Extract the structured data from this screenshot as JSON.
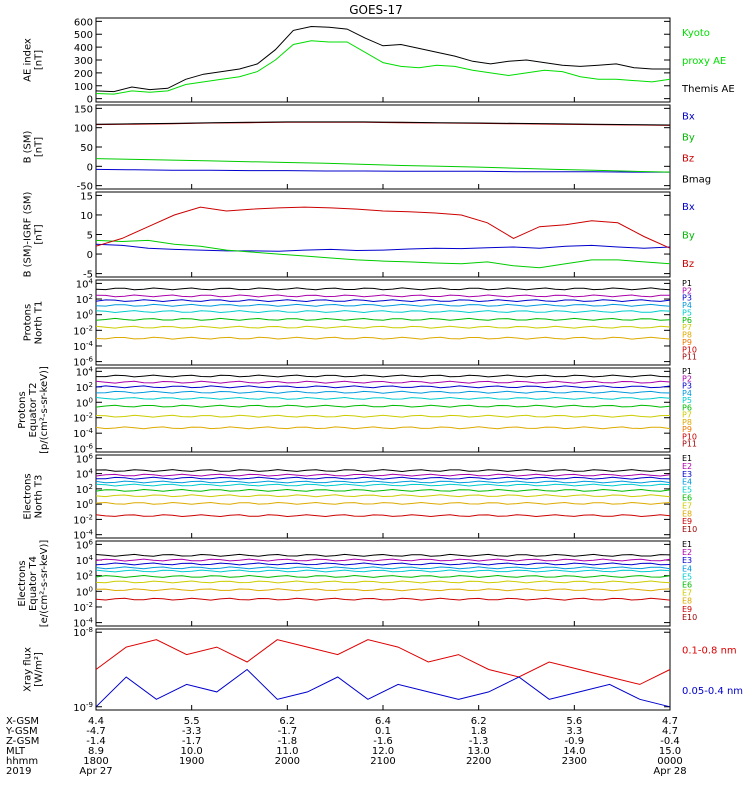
{
  "title": "GOES-17",
  "chart_data": [
    {
      "type": "line",
      "ylabel": "AE index\n[nT]",
      "ylim": [
        0,
        600
      ],
      "yticks": [
        "0",
        "100",
        "200",
        "300",
        "400",
        "500",
        "600"
      ],
      "series": [
        {
          "name": "Themis AE",
          "color": "#000000",
          "y": [
            60,
            55,
            90,
            70,
            80,
            150,
            190,
            210,
            230,
            270,
            380,
            530,
            560,
            555,
            540,
            470,
            410,
            420,
            390,
            360,
            330,
            290,
            270,
            290,
            300,
            280,
            260,
            250,
            260,
            270,
            240,
            230,
            230
          ]
        },
        {
          "name": "Kyoto proxy AE",
          "color": "#00dd00",
          "y": [
            40,
            35,
            60,
            50,
            60,
            110,
            130,
            150,
            170,
            210,
            300,
            420,
            450,
            440,
            440,
            360,
            280,
            250,
            240,
            260,
            250,
            220,
            200,
            180,
            200,
            220,
            210,
            170,
            150,
            150,
            140,
            130,
            150
          ]
        }
      ],
      "legend": [
        {
          "text": "Kyoto",
          "color": "#00dd00"
        },
        {
          "text": "proxy AE",
          "color": "#00dd00"
        },
        {
          "text": "Themis AE",
          "color": "#000000"
        }
      ]
    },
    {
      "type": "line",
      "ylabel": "B (SM)\n[nT]",
      "ylim": [
        -50,
        150
      ],
      "yticks": [
        "-50",
        "0",
        "50",
        "100",
        "150"
      ],
      "series": [
        {
          "name": "Bx",
          "color": "#0000cc",
          "y": [
            -8,
            -9,
            -10,
            -10,
            -11,
            -11,
            -12,
            -12,
            -13,
            -13,
            -13,
            -14,
            -14,
            -14,
            -15,
            -15
          ]
        },
        {
          "name": "By",
          "color": "#00cc00",
          "y": [
            20,
            18,
            16,
            14,
            12,
            10,
            8,
            5,
            2,
            0,
            -2,
            -5,
            -8,
            -10,
            -13,
            -15
          ]
        },
        {
          "name": "Bz",
          "color": "#cc0000",
          "y": [
            108,
            109,
            110,
            112,
            113,
            114,
            114,
            114,
            113,
            112,
            111,
            110,
            109,
            108,
            107,
            106
          ]
        },
        {
          "name": "Bmag",
          "color": "#000000",
          "y": [
            109,
            110,
            111,
            113,
            114,
            115,
            115,
            115,
            114,
            113,
            112,
            111,
            110,
            109,
            108,
            107
          ]
        }
      ],
      "legend": [
        {
          "text": "Bx",
          "color": "#0000cc"
        },
        {
          "text": "By",
          "color": "#00bb00"
        },
        {
          "text": "Bz",
          "color": "#cc0000"
        },
        {
          "text": "Bmag",
          "color": "#000000"
        }
      ]
    },
    {
      "type": "line",
      "ylabel": "B (SM)-IGRF (SM)\n[nT]",
      "ylim": [
        -5,
        15
      ],
      "yticks": [
        "-5",
        "0",
        "5",
        "10",
        "15"
      ],
      "series": [
        {
          "name": "Bx",
          "color": "#0000cc",
          "y": [
            2.5,
            2.2,
            1.5,
            1.2,
            1.0,
            0.8,
            0.8,
            0.7,
            1.0,
            1.2,
            0.9,
            1.0,
            1.3,
            1.5,
            1.4,
            1.6,
            1.8,
            1.5,
            2.0,
            2.2,
            1.8,
            1.5,
            1.8
          ]
        },
        {
          "name": "By",
          "color": "#00cc00",
          "y": [
            3.5,
            3.2,
            3.5,
            2.5,
            2.0,
            1.0,
            0.5,
            0.0,
            -0.5,
            -1.0,
            -1.5,
            -1.8,
            -2.0,
            -2.3,
            -2.5,
            -2.0,
            -3.0,
            -3.5,
            -2.5,
            -1.5,
            -1.5,
            -2.0,
            -2.5
          ]
        },
        {
          "name": "Bz",
          "color": "#cc0000",
          "y": [
            2.0,
            4.0,
            7.0,
            10.0,
            12.0,
            11.0,
            11.5,
            11.8,
            12.0,
            11.8,
            11.5,
            11.0,
            10.8,
            10.5,
            10.0,
            8.0,
            4.0,
            7.0,
            7.5,
            8.5,
            8.0,
            4.5,
            1.5
          ]
        }
      ],
      "legend": [
        {
          "text": "Bx",
          "color": "#0000cc"
        },
        {
          "text": "By",
          "color": "#00bb00"
        },
        {
          "text": "Bz",
          "color": "#cc0000"
        }
      ]
    },
    {
      "type": "line",
      "ylabel": "Protons\nNorth T1",
      "scale": "log",
      "yticks": [
        "10^4",
        "10^2",
        "10^0",
        "10^-2",
        "10^-4",
        "10^-6"
      ],
      "series": [
        {
          "name": "P1",
          "color": "#000000",
          "y": [
            3.3
          ]
        },
        {
          "name": "P2",
          "color": "#aa00aa",
          "y": [
            2.4
          ]
        },
        {
          "name": "P3",
          "color": "#0000cc",
          "y": [
            1.8
          ]
        },
        {
          "name": "P4",
          "color": "#0099dd",
          "y": [
            1.2
          ]
        },
        {
          "name": "P5",
          "color": "#00cccc",
          "y": [
            0.4
          ]
        },
        {
          "name": "P6",
          "color": "#00bb00",
          "y": [
            -0.6
          ]
        },
        {
          "name": "P7",
          "color": "#cccc00",
          "y": [
            -1.6
          ]
        },
        {
          "name": "P8",
          "color": "#ddaa00",
          "y": [
            -3.0
          ]
        }
      ],
      "legend": [
        {
          "text": "P1",
          "color": "#000000"
        },
        {
          "text": "P2",
          "color": "#aa00aa"
        },
        {
          "text": "P3",
          "color": "#0000cc"
        },
        {
          "text": "P4",
          "color": "#0099dd"
        },
        {
          "text": "P5",
          "color": "#00cccc"
        },
        {
          "text": "P6",
          "color": "#00bb00"
        },
        {
          "text": "P7",
          "color": "#cccc00"
        },
        {
          "text": "P8",
          "color": "#ddaa00"
        },
        {
          "text": "P9",
          "color": "#ee7700"
        },
        {
          "text": "P10",
          "color": "#cc0000"
        },
        {
          "text": "P11",
          "color": "#990000"
        }
      ]
    },
    {
      "type": "line",
      "ylabel": "Protons\nEquator T2\n[p/(cm²-s-sr-keV)]",
      "scale": "log",
      "yticks": [
        "10^4",
        "10^2",
        "10^0",
        "10^-2",
        "10^-4",
        "10^-6"
      ],
      "series": [
        {
          "name": "P1",
          "color": "#000000",
          "y": [
            3.4
          ]
        },
        {
          "name": "P2",
          "color": "#aa00aa",
          "y": [
            2.6
          ]
        },
        {
          "name": "P3",
          "color": "#0000cc",
          "y": [
            2.0
          ]
        },
        {
          "name": "P4",
          "color": "#0099dd",
          "y": [
            1.3
          ]
        },
        {
          "name": "P5",
          "color": "#00cccc",
          "y": [
            0.5
          ]
        },
        {
          "name": "P6",
          "color": "#00bb00",
          "y": [
            -0.5
          ]
        },
        {
          "name": "P7",
          "color": "#cccc00",
          "y": [
            -1.8
          ]
        },
        {
          "name": "P8",
          "color": "#ddaa00",
          "y": [
            -3.3
          ]
        }
      ],
      "legend": [
        {
          "text": "P1",
          "color": "#000000"
        },
        {
          "text": "P2",
          "color": "#aa00aa"
        },
        {
          "text": "P3",
          "color": "#0000cc"
        },
        {
          "text": "P4",
          "color": "#0099dd"
        },
        {
          "text": "P5",
          "color": "#00cccc"
        },
        {
          "text": "P6",
          "color": "#00bb00"
        },
        {
          "text": "P7",
          "color": "#cccc00"
        },
        {
          "text": "P8",
          "color": "#ddaa00"
        },
        {
          "text": "P9",
          "color": "#ee7700"
        },
        {
          "text": "P10",
          "color": "#cc0000"
        },
        {
          "text": "P11",
          "color": "#990000"
        }
      ]
    },
    {
      "type": "line",
      "ylabel": "Electrons\nNorth T3",
      "scale": "log",
      "yticks": [
        "10^6",
        "10^4",
        "10^2",
        "10^0",
        "10^-2",
        "10^-4"
      ],
      "series": [
        {
          "name": "E1",
          "color": "#000000",
          "y": [
            4.4
          ]
        },
        {
          "name": "E2",
          "color": "#aa00aa",
          "y": [
            3.8
          ]
        },
        {
          "name": "E3",
          "color": "#0000cc",
          "y": [
            3.4
          ]
        },
        {
          "name": "E4",
          "color": "#0099dd",
          "y": [
            2.9
          ]
        },
        {
          "name": "E5",
          "color": "#00cccc",
          "y": [
            2.5
          ]
        },
        {
          "name": "E6",
          "color": "#00bb00",
          "y": [
            1.8
          ]
        },
        {
          "name": "E7",
          "color": "#cccc00",
          "y": [
            1.1
          ]
        },
        {
          "name": "E8",
          "color": "#ddaa00",
          "y": [
            0.1
          ]
        },
        {
          "name": "E9",
          "color": "#cc0000",
          "y": [
            -1.5
          ]
        }
      ],
      "legend": [
        {
          "text": "E1",
          "color": "#000000"
        },
        {
          "text": "E2",
          "color": "#aa00aa"
        },
        {
          "text": "E3",
          "color": "#0000cc"
        },
        {
          "text": "E4",
          "color": "#0099dd"
        },
        {
          "text": "E5",
          "color": "#00cccc"
        },
        {
          "text": "E6",
          "color": "#00bb00"
        },
        {
          "text": "E7",
          "color": "#cccc00"
        },
        {
          "text": "E8",
          "color": "#ddaa00"
        },
        {
          "text": "E9",
          "color": "#cc0000"
        },
        {
          "text": "E10",
          "color": "#990000"
        }
      ]
    },
    {
      "type": "line",
      "ylabel": "Electrons\nEquator T4\n[e/(cm²-s-sr-keV)]",
      "scale": "log",
      "yticks": [
        "10^6",
        "10^4",
        "10^2",
        "10^0",
        "10^-2",
        "10^-4"
      ],
      "series": [
        {
          "name": "E1",
          "color": "#000000",
          "y": [
            4.6
          ]
        },
        {
          "name": "E2",
          "color": "#aa00aa",
          "y": [
            4.0
          ]
        },
        {
          "name": "E3",
          "color": "#0000cc",
          "y": [
            3.5
          ]
        },
        {
          "name": "E4",
          "color": "#0099dd",
          "y": [
            3.0
          ]
        },
        {
          "name": "E5",
          "color": "#00cccc",
          "y": [
            2.6
          ]
        },
        {
          "name": "E6",
          "color": "#00bb00",
          "y": [
            1.9
          ]
        },
        {
          "name": "E7",
          "color": "#cccc00",
          "y": [
            1.2
          ]
        },
        {
          "name": "E8",
          "color": "#ddaa00",
          "y": [
            0.2
          ]
        },
        {
          "name": "E9",
          "color": "#cc0000",
          "y": [
            -1.0
          ]
        }
      ],
      "legend": [
        {
          "text": "E1",
          "color": "#000000"
        },
        {
          "text": "E2",
          "color": "#aa00aa"
        },
        {
          "text": "E3",
          "color": "#0000cc"
        },
        {
          "text": "E4",
          "color": "#0099dd"
        },
        {
          "text": "E5",
          "color": "#00cccc"
        },
        {
          "text": "E6",
          "color": "#00bb00"
        },
        {
          "text": "E7",
          "color": "#cccc00"
        },
        {
          "text": "E8",
          "color": "#ddaa00"
        },
        {
          "text": "E9",
          "color": "#cc0000"
        },
        {
          "text": "E10",
          "color": "#990000"
        }
      ]
    },
    {
      "type": "line",
      "ylabel": "Xray flux\n[W/m²]",
      "scale": "log",
      "yticks": [
        "10^-8",
        "10^-9"
      ],
      "series": [
        {
          "name": "0.1-0.8 nm",
          "color": "#dd0000",
          "y": [
            -8.5,
            -8.2,
            -8.1,
            -8.3,
            -8.2,
            -8.4,
            -8.1,
            -8.2,
            -8.3,
            -8.1,
            -8.2,
            -8.4,
            -8.3,
            -8.5,
            -8.6,
            -8.4,
            -8.5,
            -8.6,
            -8.7,
            -8.5
          ]
        },
        {
          "name": "0.05-0.4 nm",
          "color": "#0000cc",
          "y": [
            -9.0,
            -8.6,
            -8.9,
            -8.7,
            -8.8,
            -8.5,
            -8.9,
            -8.8,
            -8.6,
            -8.9,
            -8.7,
            -8.8,
            -8.9,
            -8.8,
            -8.6,
            -8.9,
            -8.8,
            -8.7,
            -8.9,
            -9.0
          ]
        }
      ],
      "legend": [
        {
          "text": "0.1-0.8 nm",
          "color": "#dd0000"
        },
        {
          "text": "0.05-0.4 nm",
          "color": "#0000cc"
        }
      ]
    }
  ],
  "x_axis": {
    "row_labels": [
      "X-GSM",
      "Y-GSM",
      "Z-GSM",
      "MLT",
      "hhmm",
      "2019"
    ],
    "columns": [
      [
        "4.4",
        "-4.7",
        "-1.4",
        "8.9",
        "1800",
        "Apr 27"
      ],
      [
        "5.5",
        "-3.3",
        "-1.7",
        "10.0",
        "1900",
        ""
      ],
      [
        "6.2",
        "-1.7",
        "-1.8",
        "11.0",
        "2000",
        ""
      ],
      [
        "6.4",
        "0.1",
        "-1.6",
        "12.0",
        "2100",
        ""
      ],
      [
        "6.2",
        "1.8",
        "-1.3",
        "13.0",
        "2200",
        ""
      ],
      [
        "5.6",
        "3.3",
        "-0.9",
        "14.0",
        "2300",
        ""
      ],
      [
        "4.7",
        "4.7",
        "-0.4",
        "15.0",
        "0000",
        "Apr 28"
      ]
    ]
  }
}
